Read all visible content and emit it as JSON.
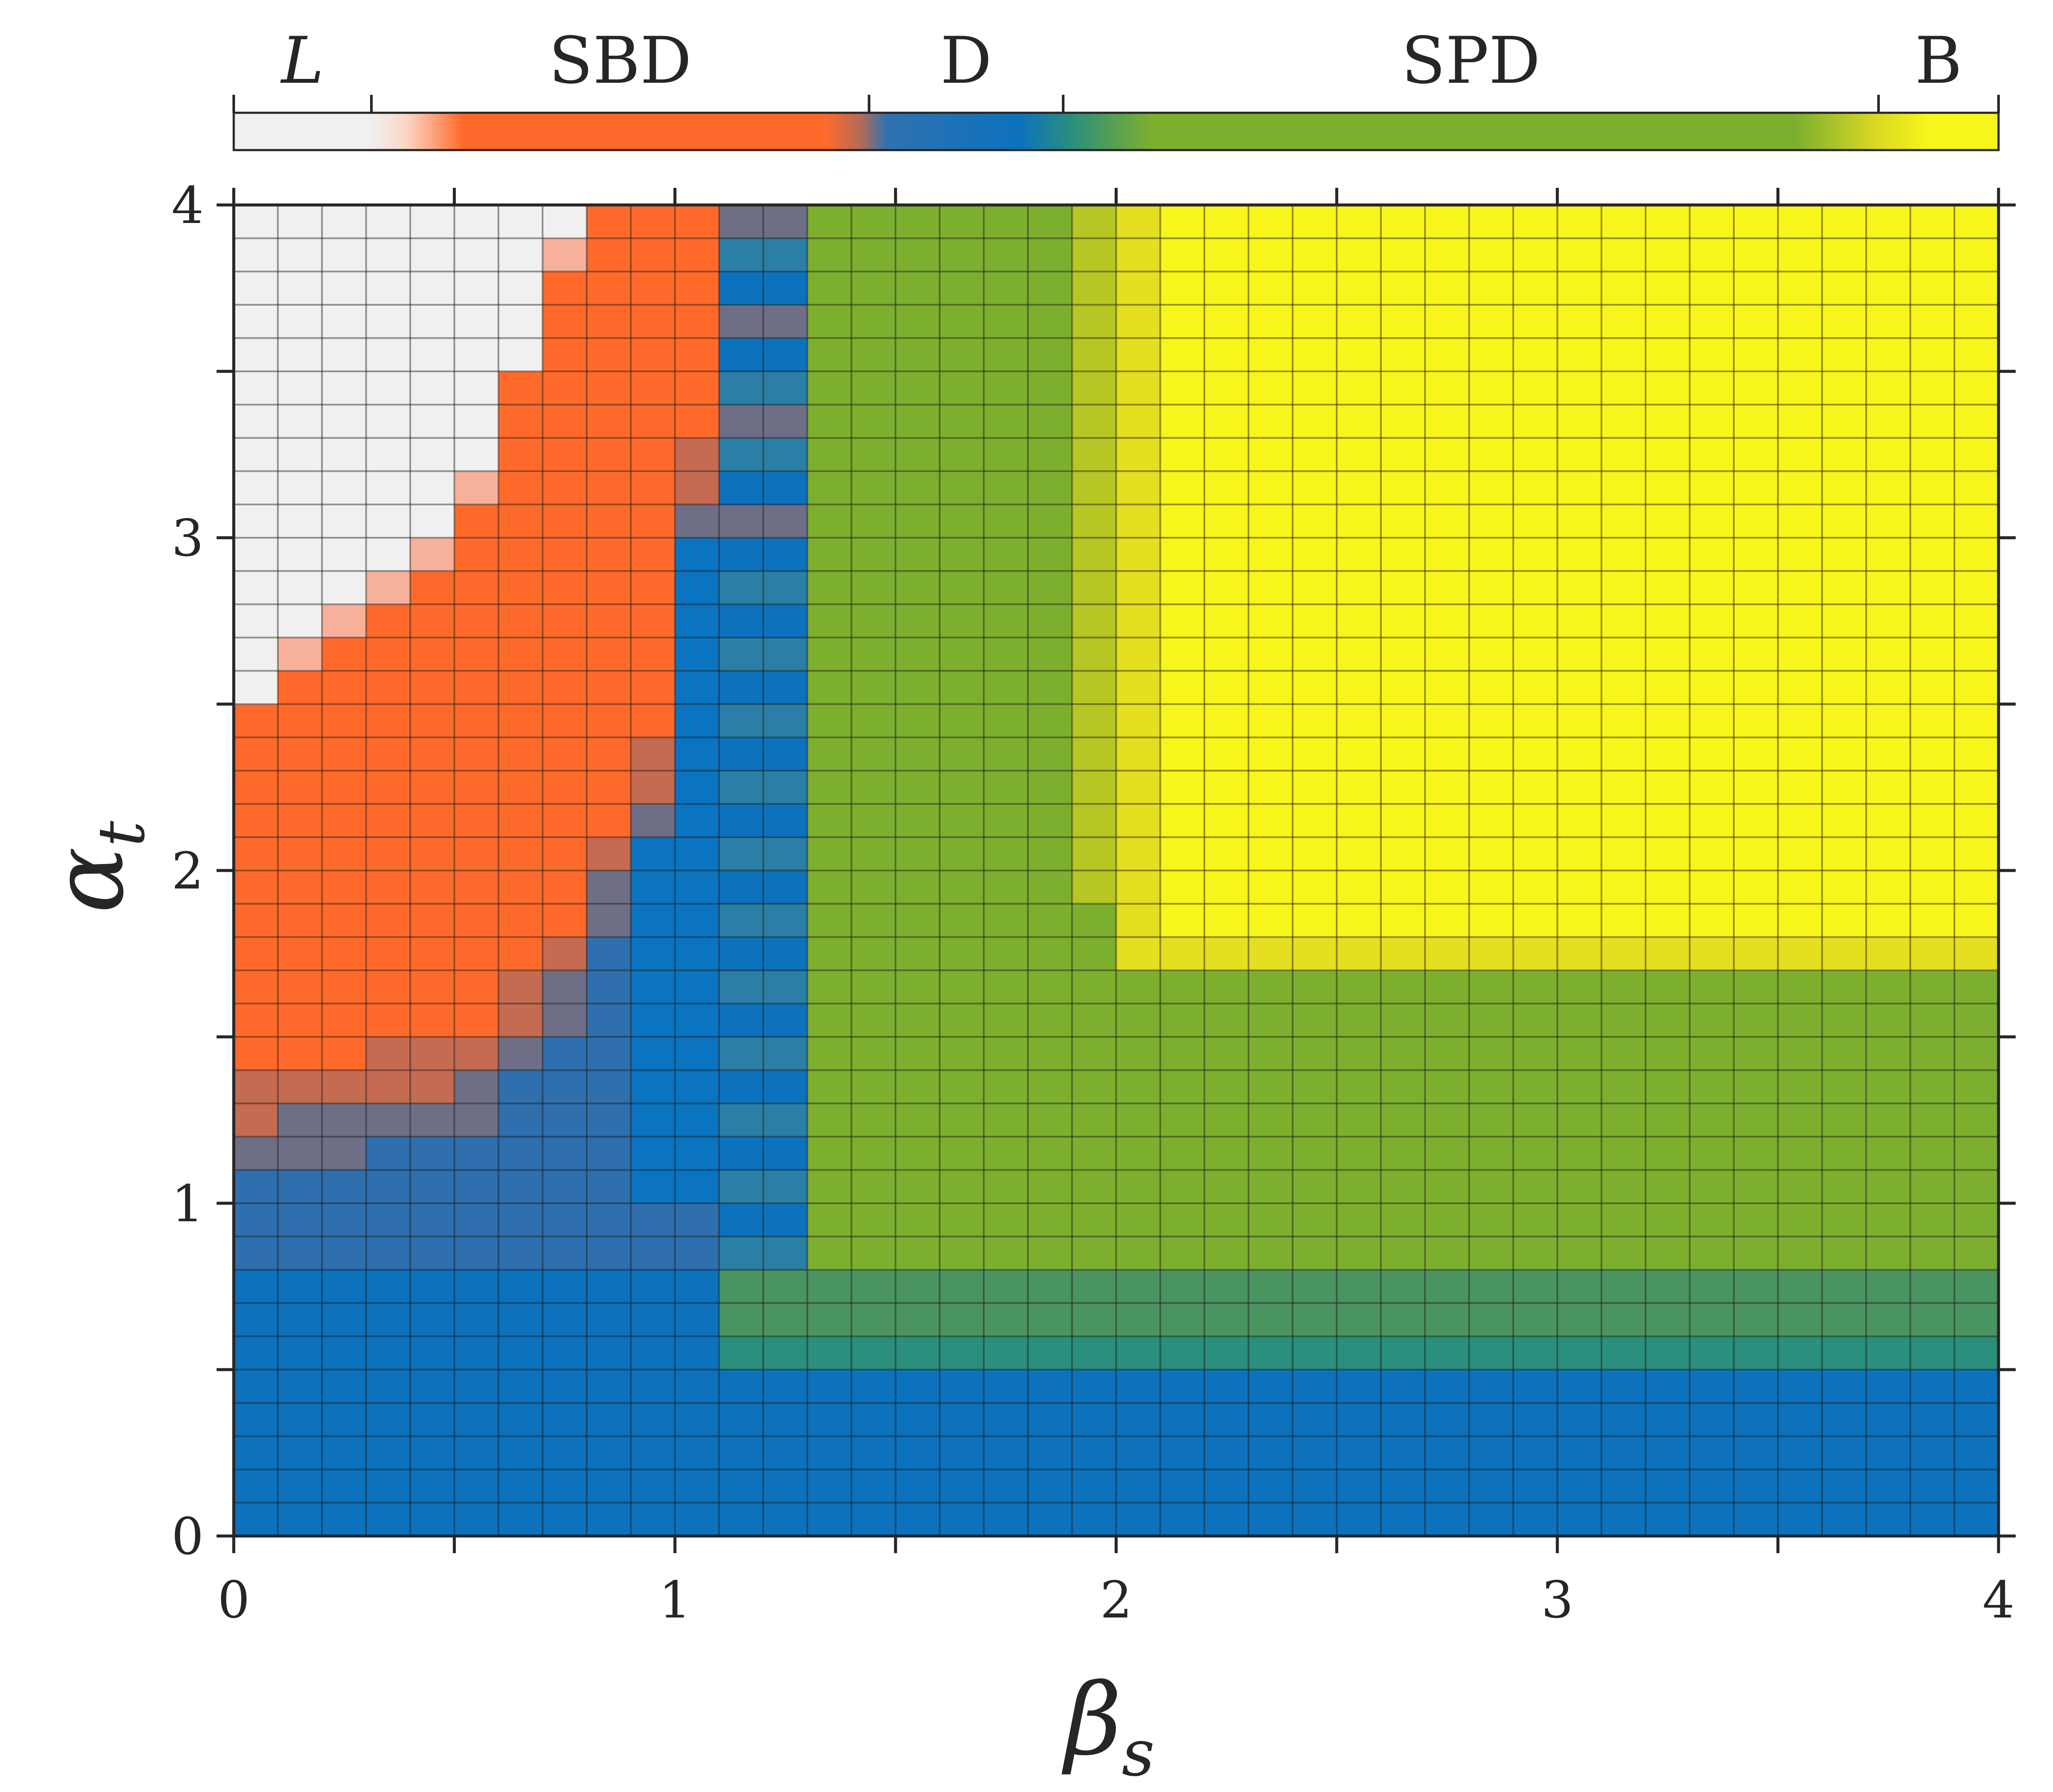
{
  "chart_data": {
    "type": "heatmap",
    "title": "",
    "xlabel": {
      "symbol": "β",
      "subscript": "s"
    },
    "ylabel": {
      "symbol": "α",
      "subscript": "t"
    },
    "xlim": [
      0,
      4
    ],
    "ylim": [
      0,
      4
    ],
    "grid_step": 0.1,
    "columns": 40,
    "rows": 40,
    "x_ticks": [
      0,
      0.5,
      1,
      1.5,
      2,
      2.5,
      3,
      3.5,
      4
    ],
    "x_tick_labels": [
      "0",
      "1",
      "2",
      "3",
      "4"
    ],
    "x_tick_label_values": [
      0,
      1,
      2,
      3,
      4
    ],
    "y_ticks": [
      0,
      0.5,
      1,
      1.5,
      2,
      2.5,
      3,
      3.5,
      4
    ],
    "y_tick_labels": [
      "0",
      "1",
      "2",
      "3",
      "4"
    ],
    "y_tick_label_values": [
      0,
      1,
      2,
      3,
      4
    ],
    "regime_colors": {
      "L": "#f0f0f0",
      "SBD": "#ff6a2b",
      "D": "#0c72bd",
      "SPD": "#7daf2f",
      "B": "#f8f51a",
      "L_SBD": "#f7b19b",
      "SBD_D": "#6e6f86",
      "D_SPD": "#2a8f7c"
    },
    "colorbar": {
      "position": "top",
      "value_range": [
        0,
        1
      ],
      "regimes": [
        {
          "label": "L",
          "italic": true,
          "start": 0.0,
          "end": 0.078
        },
        {
          "label": "SBD",
          "italic": false,
          "start": 0.078,
          "end": 0.36
        },
        {
          "label": "D",
          "italic": false,
          "start": 0.36,
          "end": 0.47
        },
        {
          "label": "SPD",
          "italic": false,
          "start": 0.47,
          "end": 0.932
        },
        {
          "label": "B",
          "italic": false,
          "start": 0.932,
          "end": 1.0
        }
      ],
      "gradient_stops": [
        {
          "pos": 0.0,
          "color": "#f0f0f0"
        },
        {
          "pos": 0.077,
          "color": "#f0f0f0"
        },
        {
          "pos": 0.098,
          "color": "#fbd6c6"
        },
        {
          "pos": 0.13,
          "color": "#ff6a2b"
        },
        {
          "pos": 0.335,
          "color": "#ff6a2b"
        },
        {
          "pos": 0.355,
          "color": "#b56b56"
        },
        {
          "pos": 0.37,
          "color": "#2f72b0"
        },
        {
          "pos": 0.445,
          "color": "#0c72bd"
        },
        {
          "pos": 0.475,
          "color": "#2a8f7c"
        },
        {
          "pos": 0.52,
          "color": "#7daf2f"
        },
        {
          "pos": 0.885,
          "color": "#7daf2f"
        },
        {
          "pos": 0.93,
          "color": "#d8d824"
        },
        {
          "pos": 0.96,
          "color": "#f8f51a"
        },
        {
          "pos": 1.0,
          "color": "#f8f51a"
        }
      ]
    },
    "regions_description_key": "cells are classified by the rules in the render script; colours per regime_colors",
    "boundaries": {
      "B_region": {
        "beta_min": 2.0,
        "alpha_min": 1.7
      },
      "blue_floor_alpha": 0.5,
      "dsp_band_alpha": [
        0.5,
        0.8
      ],
      "d_column_beta": [
        1.1,
        1.3
      ],
      "l_boundary": [
        [
          0,
          2.4
        ],
        [
          0.1,
          2.6
        ],
        [
          0.3,
          2.8
        ],
        [
          0.5,
          3.0
        ],
        [
          0.6,
          3.3
        ],
        [
          0.7,
          3.7
        ],
        [
          0.8,
          4.0
        ]
      ],
      "sbd_boundary": [
        [
          0,
          1.3
        ],
        [
          0.3,
          1.4
        ],
        [
          0.6,
          1.5
        ],
        [
          0.7,
          1.7
        ],
        [
          0.8,
          1.9
        ],
        [
          0.9,
          2.2
        ],
        [
          1.0,
          2.4
        ],
        [
          1.1,
          4.0
        ]
      ]
    }
  }
}
